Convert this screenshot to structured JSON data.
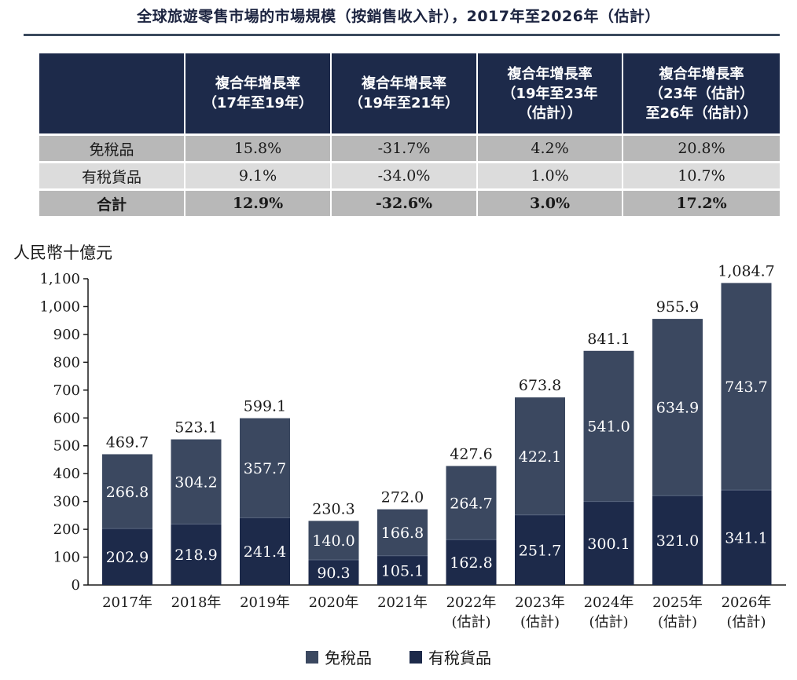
{
  "title": "全球旅遊零售市場的市場規模（按銷售收入計），2017年至2026年（估計）",
  "table": {
    "headers": [
      "",
      "複合年增長率\n（17年至19年）",
      "複合年增長率\n（19年至21年）",
      "複合年增長率\n（19年至23年\n（估計））",
      "複合年增長率\n（23年（估計）\n至26年（估計））"
    ],
    "rows": [
      [
        "免稅品",
        "15.8%",
        "-31.7%",
        "4.2%",
        "20.8%"
      ],
      [
        "有稅貨品",
        "9.1%",
        "-34.0%",
        "1.0%",
        "10.7%"
      ],
      [
        "合計",
        "12.9%",
        "-32.6%",
        "3.0%",
        "17.2%"
      ]
    ]
  },
  "chart_data": {
    "type": "bar",
    "stacked": true,
    "unit_label": "人民幣十億元",
    "categories": [
      "2017年",
      "2018年",
      "2019年",
      "2020年",
      "2021年",
      "2022年\n(估計)",
      "2023年\n(估計)",
      "2024年\n(估計)",
      "2025年\n(估計)",
      "2026年\n(估計)"
    ],
    "series": [
      {
        "name": "有稅貨品",
        "color": "#1d2a4a",
        "values": [
          202.9,
          218.9,
          241.4,
          90.3,
          105.1,
          162.8,
          251.7,
          300.1,
          321.0,
          341.1
        ],
        "labels": [
          "202.9",
          "218.9",
          "241.4",
          "90.3",
          "105.1",
          "162.8",
          "251.7",
          "300.1",
          "321.0",
          "341.1"
        ]
      },
      {
        "name": "免稅品",
        "color": "#3b4860",
        "values": [
          266.8,
          304.2,
          357.7,
          140.0,
          166.8,
          264.7,
          422.1,
          541.0,
          634.9,
          743.7
        ],
        "labels": [
          "266.8",
          "304.2",
          "357.7",
          "140.0",
          "166.8",
          "264.7",
          "422.1",
          "541.0",
          "634.9",
          "743.7"
        ]
      }
    ],
    "totals": [
      469.7,
      523.1,
      599.1,
      230.3,
      272.0,
      427.6,
      673.8,
      841.1,
      955.9,
      1084.7
    ],
    "total_labels": [
      "469.7",
      "523.1",
      "599.1",
      "230.3",
      "272.0",
      "427.6",
      "673.8",
      "841.1",
      "955.9",
      "1,084.7"
    ],
    "ylim": [
      0,
      1100
    ],
    "yticks": [
      0,
      100,
      200,
      300,
      400,
      500,
      600,
      700,
      800,
      900,
      1000,
      1100
    ],
    "ytick_labels": [
      "0",
      "100",
      "200",
      "300",
      "400",
      "500",
      "600",
      "700",
      "800",
      "900",
      "1,000",
      "1,100"
    ],
    "legend": [
      "免稅品",
      "有稅貨品"
    ]
  }
}
